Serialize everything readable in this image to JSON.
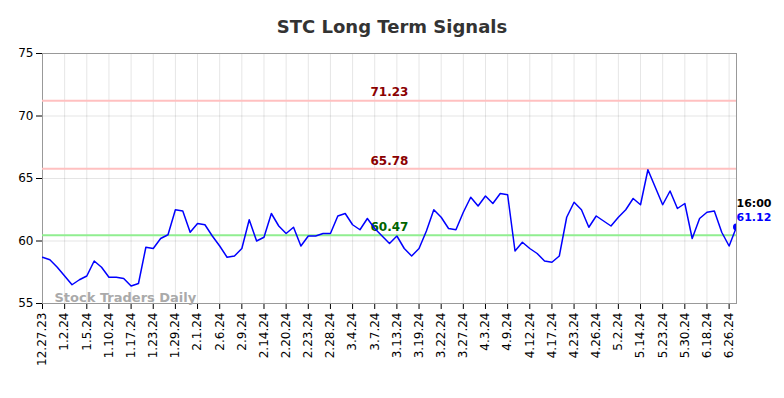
{
  "chart_data": {
    "type": "line",
    "title": "STC Long Term Signals",
    "categories": [
      "12.27.23",
      null,
      null,
      "1.2.24",
      null,
      null,
      "1.5.24",
      null,
      null,
      "1.10.24",
      null,
      null,
      "1.17.24",
      null,
      null,
      "1.23.24",
      null,
      null,
      "1.29.24",
      null,
      null,
      "2.1.24",
      null,
      null,
      "2.6.24",
      null,
      null,
      "2.9.24",
      null,
      null,
      "2.14.24",
      null,
      null,
      "2.20.24",
      null,
      null,
      "2.23.24",
      null,
      null,
      "2.28.24",
      null,
      null,
      "3.4.24",
      null,
      null,
      "3.7.24",
      null,
      null,
      "3.13.24",
      null,
      null,
      "3.19.24",
      null,
      null,
      "3.22.24",
      null,
      null,
      "3.27.24",
      null,
      null,
      "4.3.24",
      null,
      null,
      "4.9.24",
      null,
      null,
      "4.12.24",
      null,
      null,
      "4.17.24",
      null,
      null,
      "4.23.24",
      null,
      null,
      "4.26.24",
      null,
      null,
      "5.2.24",
      null,
      null,
      "5.14.24",
      null,
      null,
      "5.23.24",
      null,
      null,
      "5.30.24",
      null,
      null,
      "6.18.24",
      null,
      null,
      "6.26.24",
      null
    ],
    "values": [
      58.7,
      58.5,
      57.9,
      57.2,
      56.5,
      56.9,
      57.2,
      58.4,
      57.9,
      57.1,
      57.1,
      57.0,
      56.4,
      56.6,
      59.5,
      59.4,
      60.2,
      60.5,
      62.5,
      62.4,
      60.7,
      61.4,
      61.3,
      60.4,
      59.6,
      58.7,
      58.8,
      59.4,
      61.7,
      60.0,
      60.3,
      62.2,
      61.2,
      60.6,
      61.1,
      59.6,
      60.4,
      60.4,
      60.6,
      60.6,
      62.0,
      62.2,
      61.3,
      60.9,
      61.8,
      61.0,
      60.4,
      59.8,
      60.4,
      59.4,
      58.8,
      59.4,
      60.8,
      62.5,
      61.9,
      61.0,
      60.9,
      62.3,
      63.5,
      62.8,
      63.6,
      63.0,
      63.8,
      63.7,
      59.2,
      59.9,
      59.4,
      59.0,
      58.4,
      58.3,
      58.8,
      61.9,
      63.1,
      62.5,
      61.1,
      62.0,
      61.6,
      61.2,
      61.9,
      62.5,
      63.4,
      62.9,
      65.7,
      64.3,
      62.9,
      64.0,
      62.6,
      63.0,
      60.2,
      61.8,
      62.3,
      62.4,
      60.7,
      59.6,
      61.12
    ],
    "color": "#0000ff",
    "ylim": [
      55,
      75
    ],
    "yticks": [
      55,
      60,
      65,
      70,
      75
    ],
    "grid": true,
    "levels": [
      {
        "value": 71.23,
        "color": "#ffc0c0",
        "label_color": "#8b0000"
      },
      {
        "value": 65.78,
        "color": "#ffc0c0",
        "label_color": "#8b0000"
      },
      {
        "value": 60.47,
        "color": "#90ee90",
        "label_color": "#006400"
      }
    ],
    "last_time": "16:00",
    "watermark": "Stock Traders Daily"
  }
}
